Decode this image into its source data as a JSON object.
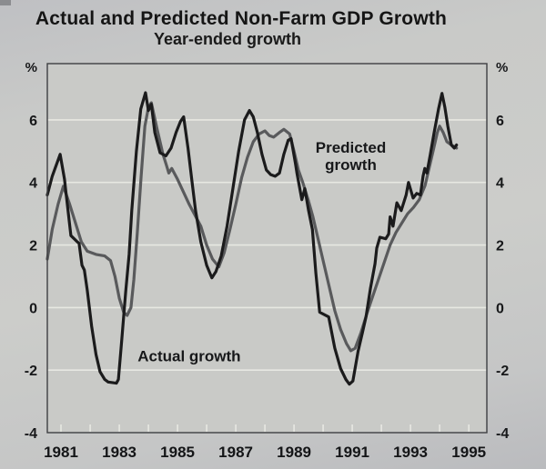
{
  "chart_data": {
    "type": "line",
    "title": "Actual and Predicted Non-Farm GDP Growth",
    "subtitle": "Year-ended growth",
    "y_unit_left": "%",
    "y_unit_right": "%",
    "xlim": [
      1980.53,
      1995.62
    ],
    "ylim": [
      -4,
      7.8
    ],
    "grid": "on",
    "legend_position": "none (in-plot annotations)",
    "gridlines": [
      6,
      4,
      2,
      0,
      -2
    ],
    "yticks": [
      {
        "value": 6,
        "label": "6"
      },
      {
        "value": 4,
        "label": "4"
      },
      {
        "value": 2,
        "label": "2"
      },
      {
        "value": 0,
        "label": "0"
      },
      {
        "value": -2,
        "label": "-2"
      },
      {
        "value": -4,
        "label": "-4"
      }
    ],
    "xticks": [
      {
        "year": 1981,
        "label": "1981"
      },
      {
        "year": 1983,
        "label": "1983"
      },
      {
        "year": 1985,
        "label": "1985"
      },
      {
        "year": 1987,
        "label": "1987"
      },
      {
        "year": 1989,
        "label": "1989"
      },
      {
        "year": 1991,
        "label": "1991"
      },
      {
        "year": 1993,
        "label": "1993"
      },
      {
        "year": 1995,
        "label": "1995"
      }
    ],
    "x_minor_ticks": [
      1981,
      1982,
      1983,
      1984,
      1985,
      1986,
      1987,
      1988,
      1989,
      1990,
      1991,
      1992,
      1993,
      1994,
      1995
    ],
    "colors": {
      "plot_bg": "#c9cac7",
      "gridline": "#e7e8e2",
      "frame": "#3e3f42",
      "actual": "#1b1b1c",
      "predicted": "#595a5c"
    },
    "series": [
      {
        "id": "actual-growth",
        "name": "Actual growth",
        "color": "#1b1b1c",
        "stroke_width": 3.2,
        "points": [
          [
            1980.53,
            3.6
          ],
          [
            1980.7,
            4.2
          ],
          [
            1980.97,
            4.9
          ],
          [
            1981.12,
            4.1
          ],
          [
            1981.16,
            3.75
          ],
          [
            1981.34,
            2.3
          ],
          [
            1981.56,
            2.1
          ],
          [
            1981.62,
            2.05
          ],
          [
            1981.72,
            1.35
          ],
          [
            1981.8,
            1.2
          ],
          [
            1981.9,
            0.55
          ],
          [
            1982.05,
            -0.6
          ],
          [
            1982.2,
            -1.5
          ],
          [
            1982.34,
            -2.05
          ],
          [
            1982.5,
            -2.3
          ],
          [
            1982.62,
            -2.38
          ],
          [
            1982.9,
            -2.42
          ],
          [
            1982.97,
            -2.3
          ],
          [
            1983.09,
            -1.0
          ],
          [
            1983.22,
            0.5
          ],
          [
            1983.34,
            1.7
          ],
          [
            1983.43,
            3.1
          ],
          [
            1983.59,
            5.0
          ],
          [
            1983.74,
            6.35
          ],
          [
            1983.9,
            6.87
          ],
          [
            1984.0,
            6.3
          ],
          [
            1984.1,
            6.5
          ],
          [
            1984.22,
            5.6
          ],
          [
            1984.4,
            4.95
          ],
          [
            1984.6,
            4.85
          ],
          [
            1984.78,
            5.1
          ],
          [
            1984.95,
            5.6
          ],
          [
            1985.1,
            5.95
          ],
          [
            1985.21,
            6.1
          ],
          [
            1985.36,
            5.1
          ],
          [
            1985.5,
            4.0
          ],
          [
            1985.62,
            3.1
          ],
          [
            1985.8,
            2.1
          ],
          [
            1986.0,
            1.35
          ],
          [
            1986.18,
            0.95
          ],
          [
            1986.32,
            1.15
          ],
          [
            1986.5,
            1.65
          ],
          [
            1986.7,
            2.6
          ],
          [
            1986.9,
            3.8
          ],
          [
            1987.1,
            5.0
          ],
          [
            1987.3,
            6.0
          ],
          [
            1987.47,
            6.3
          ],
          [
            1987.6,
            6.1
          ],
          [
            1987.74,
            5.6
          ],
          [
            1987.9,
            4.9
          ],
          [
            1988.05,
            4.4
          ],
          [
            1988.2,
            4.25
          ],
          [
            1988.35,
            4.2
          ],
          [
            1988.5,
            4.3
          ],
          [
            1988.65,
            4.9
          ],
          [
            1988.8,
            5.35
          ],
          [
            1988.9,
            5.4
          ],
          [
            1989.05,
            4.6
          ],
          [
            1989.1,
            4.3
          ],
          [
            1989.27,
            3.45
          ],
          [
            1989.37,
            3.8
          ],
          [
            1989.5,
            3.1
          ],
          [
            1989.63,
            2.5
          ],
          [
            1989.75,
            1.1
          ],
          [
            1989.88,
            -0.15
          ],
          [
            1990.19,
            -0.3
          ],
          [
            1990.4,
            -1.3
          ],
          [
            1990.6,
            -1.95
          ],
          [
            1990.78,
            -2.3
          ],
          [
            1990.9,
            -2.45
          ],
          [
            1991.02,
            -2.35
          ],
          [
            1991.2,
            -1.4
          ],
          [
            1991.35,
            -0.8
          ],
          [
            1991.47,
            -0.3
          ],
          [
            1991.62,
            0.6
          ],
          [
            1991.78,
            1.4
          ],
          [
            1991.84,
            1.9
          ],
          [
            1991.95,
            2.25
          ],
          [
            1992.15,
            2.2
          ],
          [
            1992.25,
            2.35
          ],
          [
            1992.3,
            2.9
          ],
          [
            1992.4,
            2.6
          ],
          [
            1992.53,
            3.35
          ],
          [
            1992.68,
            3.1
          ],
          [
            1992.85,
            3.6
          ],
          [
            1992.93,
            4.0
          ],
          [
            1993.09,
            3.5
          ],
          [
            1993.21,
            3.65
          ],
          [
            1993.34,
            3.6
          ],
          [
            1993.43,
            4.2
          ],
          [
            1993.49,
            4.45
          ],
          [
            1993.56,
            4.3
          ],
          [
            1993.68,
            4.9
          ],
          [
            1993.81,
            5.6
          ],
          [
            1993.96,
            6.35
          ],
          [
            1994.08,
            6.85
          ],
          [
            1994.18,
            6.4
          ],
          [
            1994.28,
            5.8
          ],
          [
            1994.4,
            5.2
          ],
          [
            1994.5,
            5.1
          ],
          [
            1994.58,
            5.2
          ]
        ]
      },
      {
        "id": "predicted-growth",
        "name": "Predicted growth",
        "color": "#595a5c",
        "stroke_width": 3.2,
        "points": [
          [
            1980.53,
            1.55
          ],
          [
            1980.7,
            2.5
          ],
          [
            1980.9,
            3.3
          ],
          [
            1981.08,
            3.88
          ],
          [
            1981.3,
            3.3
          ],
          [
            1981.5,
            2.7
          ],
          [
            1981.7,
            2.1
          ],
          [
            1981.9,
            1.8
          ],
          [
            1982.2,
            1.7
          ],
          [
            1982.5,
            1.65
          ],
          [
            1982.7,
            1.5
          ],
          [
            1982.85,
            1.0
          ],
          [
            1983.0,
            0.3
          ],
          [
            1983.15,
            -0.15
          ],
          [
            1983.27,
            -0.25
          ],
          [
            1983.4,
            0.0
          ],
          [
            1983.5,
            0.9
          ],
          [
            1983.62,
            2.4
          ],
          [
            1983.75,
            4.2
          ],
          [
            1983.88,
            5.8
          ],
          [
            1984.0,
            6.4
          ],
          [
            1984.1,
            6.55
          ],
          [
            1984.3,
            5.7
          ],
          [
            1984.5,
            4.9
          ],
          [
            1984.62,
            4.55
          ],
          [
            1984.7,
            4.3
          ],
          [
            1984.8,
            4.45
          ],
          [
            1985.0,
            4.1
          ],
          [
            1985.2,
            3.7
          ],
          [
            1985.4,
            3.3
          ],
          [
            1985.6,
            2.95
          ],
          [
            1985.8,
            2.6
          ],
          [
            1986.0,
            2.0
          ],
          [
            1986.2,
            1.55
          ],
          [
            1986.42,
            1.3
          ],
          [
            1986.6,
            1.75
          ],
          [
            1986.8,
            2.5
          ],
          [
            1987.0,
            3.3
          ],
          [
            1987.2,
            4.15
          ],
          [
            1987.4,
            4.8
          ],
          [
            1987.6,
            5.3
          ],
          [
            1987.8,
            5.55
          ],
          [
            1988.0,
            5.65
          ],
          [
            1988.15,
            5.5
          ],
          [
            1988.3,
            5.45
          ],
          [
            1988.5,
            5.6
          ],
          [
            1988.65,
            5.7
          ],
          [
            1988.85,
            5.55
          ],
          [
            1989.0,
            5.0
          ],
          [
            1989.15,
            4.4
          ],
          [
            1989.3,
            4.0
          ],
          [
            1989.5,
            3.4
          ],
          [
            1989.65,
            2.9
          ],
          [
            1989.8,
            2.3
          ],
          [
            1990.0,
            1.5
          ],
          [
            1990.2,
            0.7
          ],
          [
            1990.4,
            -0.1
          ],
          [
            1990.6,
            -0.7
          ],
          [
            1990.8,
            -1.15
          ],
          [
            1990.95,
            -1.38
          ],
          [
            1991.1,
            -1.3
          ],
          [
            1991.3,
            -0.8
          ],
          [
            1991.5,
            -0.2
          ],
          [
            1991.7,
            0.35
          ],
          [
            1991.9,
            0.9
          ],
          [
            1992.1,
            1.45
          ],
          [
            1992.3,
            2.0
          ],
          [
            1992.5,
            2.4
          ],
          [
            1992.7,
            2.7
          ],
          [
            1992.9,
            3.0
          ],
          [
            1993.1,
            3.2
          ],
          [
            1993.3,
            3.45
          ],
          [
            1993.5,
            3.9
          ],
          [
            1993.65,
            4.5
          ],
          [
            1993.8,
            5.1
          ],
          [
            1993.92,
            5.6
          ],
          [
            1994.0,
            5.8
          ],
          [
            1994.12,
            5.6
          ],
          [
            1994.25,
            5.3
          ],
          [
            1994.4,
            5.2
          ],
          [
            1994.58,
            5.1
          ]
        ]
      }
    ],
    "annotations": [
      {
        "lines": [
          "Actual growth"
        ],
        "x": 1985.4,
        "y": -1.55
      },
      {
        "lines": [
          "Predicted",
          "growth"
        ],
        "x": 1990.95,
        "y": 4.85
      }
    ]
  }
}
